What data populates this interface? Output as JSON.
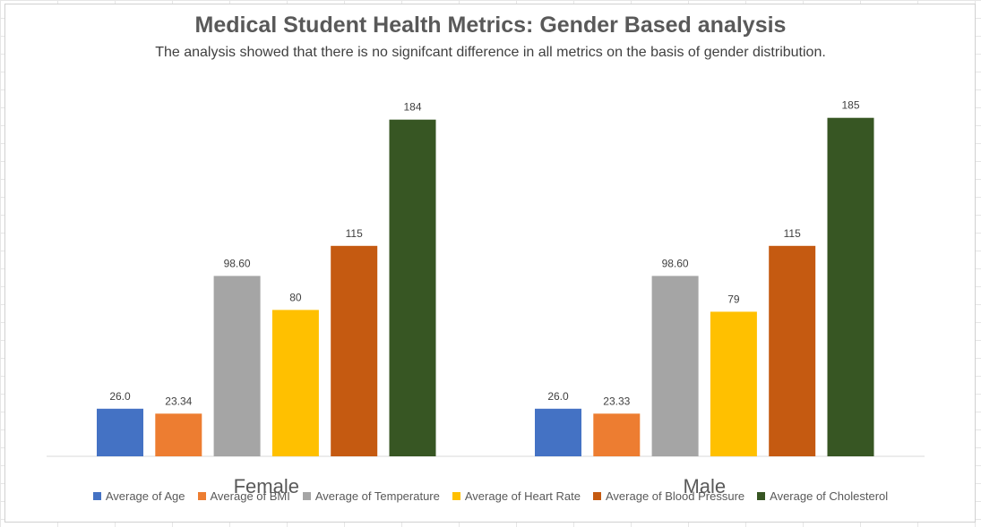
{
  "chart_data": {
    "type": "bar",
    "title": "Medical Student Health Metrics: Gender Based analysis",
    "subtitle": "The analysis showed that there is no signifcant difference in all metrics on the basis of gender distribution.",
    "categories": [
      "Female",
      "Male"
    ],
    "series": [
      {
        "name": "Average of Age",
        "color": "#4472C4",
        "values": [
          26.0,
          26.0
        ],
        "labels": [
          "26.0",
          "26.0"
        ]
      },
      {
        "name": "Average of BMI",
        "color": "#ED7D31",
        "values": [
          23.34,
          23.33
        ],
        "labels": [
          "23.34",
          "23.33"
        ]
      },
      {
        "name": "Average of Temperature",
        "color": "#A5A5A5",
        "values": [
          98.6,
          98.6
        ],
        "labels": [
          "98.60",
          "98.60"
        ]
      },
      {
        "name": "Average of Heart Rate",
        "color": "#FFC000",
        "values": [
          80,
          79
        ],
        "labels": [
          "80",
          "79"
        ]
      },
      {
        "name": "Average of Blood Pressure",
        "color": "#C55A11",
        "values": [
          115,
          115
        ],
        "labels": [
          "115",
          "115"
        ]
      },
      {
        "name": "Average of Cholesterol",
        "color": "#375623",
        "values": [
          184,
          185
        ],
        "labels": [
          "184",
          "185"
        ]
      }
    ],
    "ylim": [
      0,
      200
    ],
    "grid": false,
    "legend": "bottom"
  }
}
